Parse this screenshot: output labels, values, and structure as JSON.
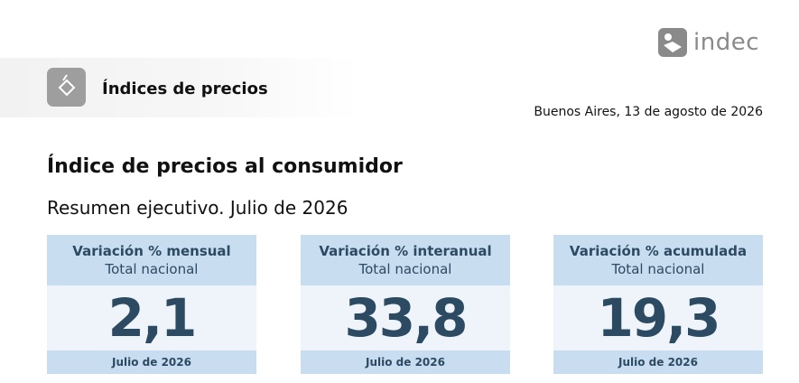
{
  "header": {
    "logo": "indec",
    "section": "Índices de precios",
    "date": "Buenos Aires, 13 de agosto de 2026"
  },
  "title": "Índice de precios al consumidor",
  "subtitle": "Resumen ejecutivo. Julio de 2026",
  "cards": [
    {
      "heading": "Variación % mensual",
      "subheading": "Total nacional",
      "value": "2,1",
      "period": "Julio de 2026"
    },
    {
      "heading": "Variación % interanual",
      "subheading": "Total nacional",
      "value": "33,8",
      "period": "Julio de 2026"
    },
    {
      "heading": "Variación % acumulada",
      "subheading": "Total nacional",
      "value": "19,3",
      "period": "Julio de 2026"
    }
  ]
}
